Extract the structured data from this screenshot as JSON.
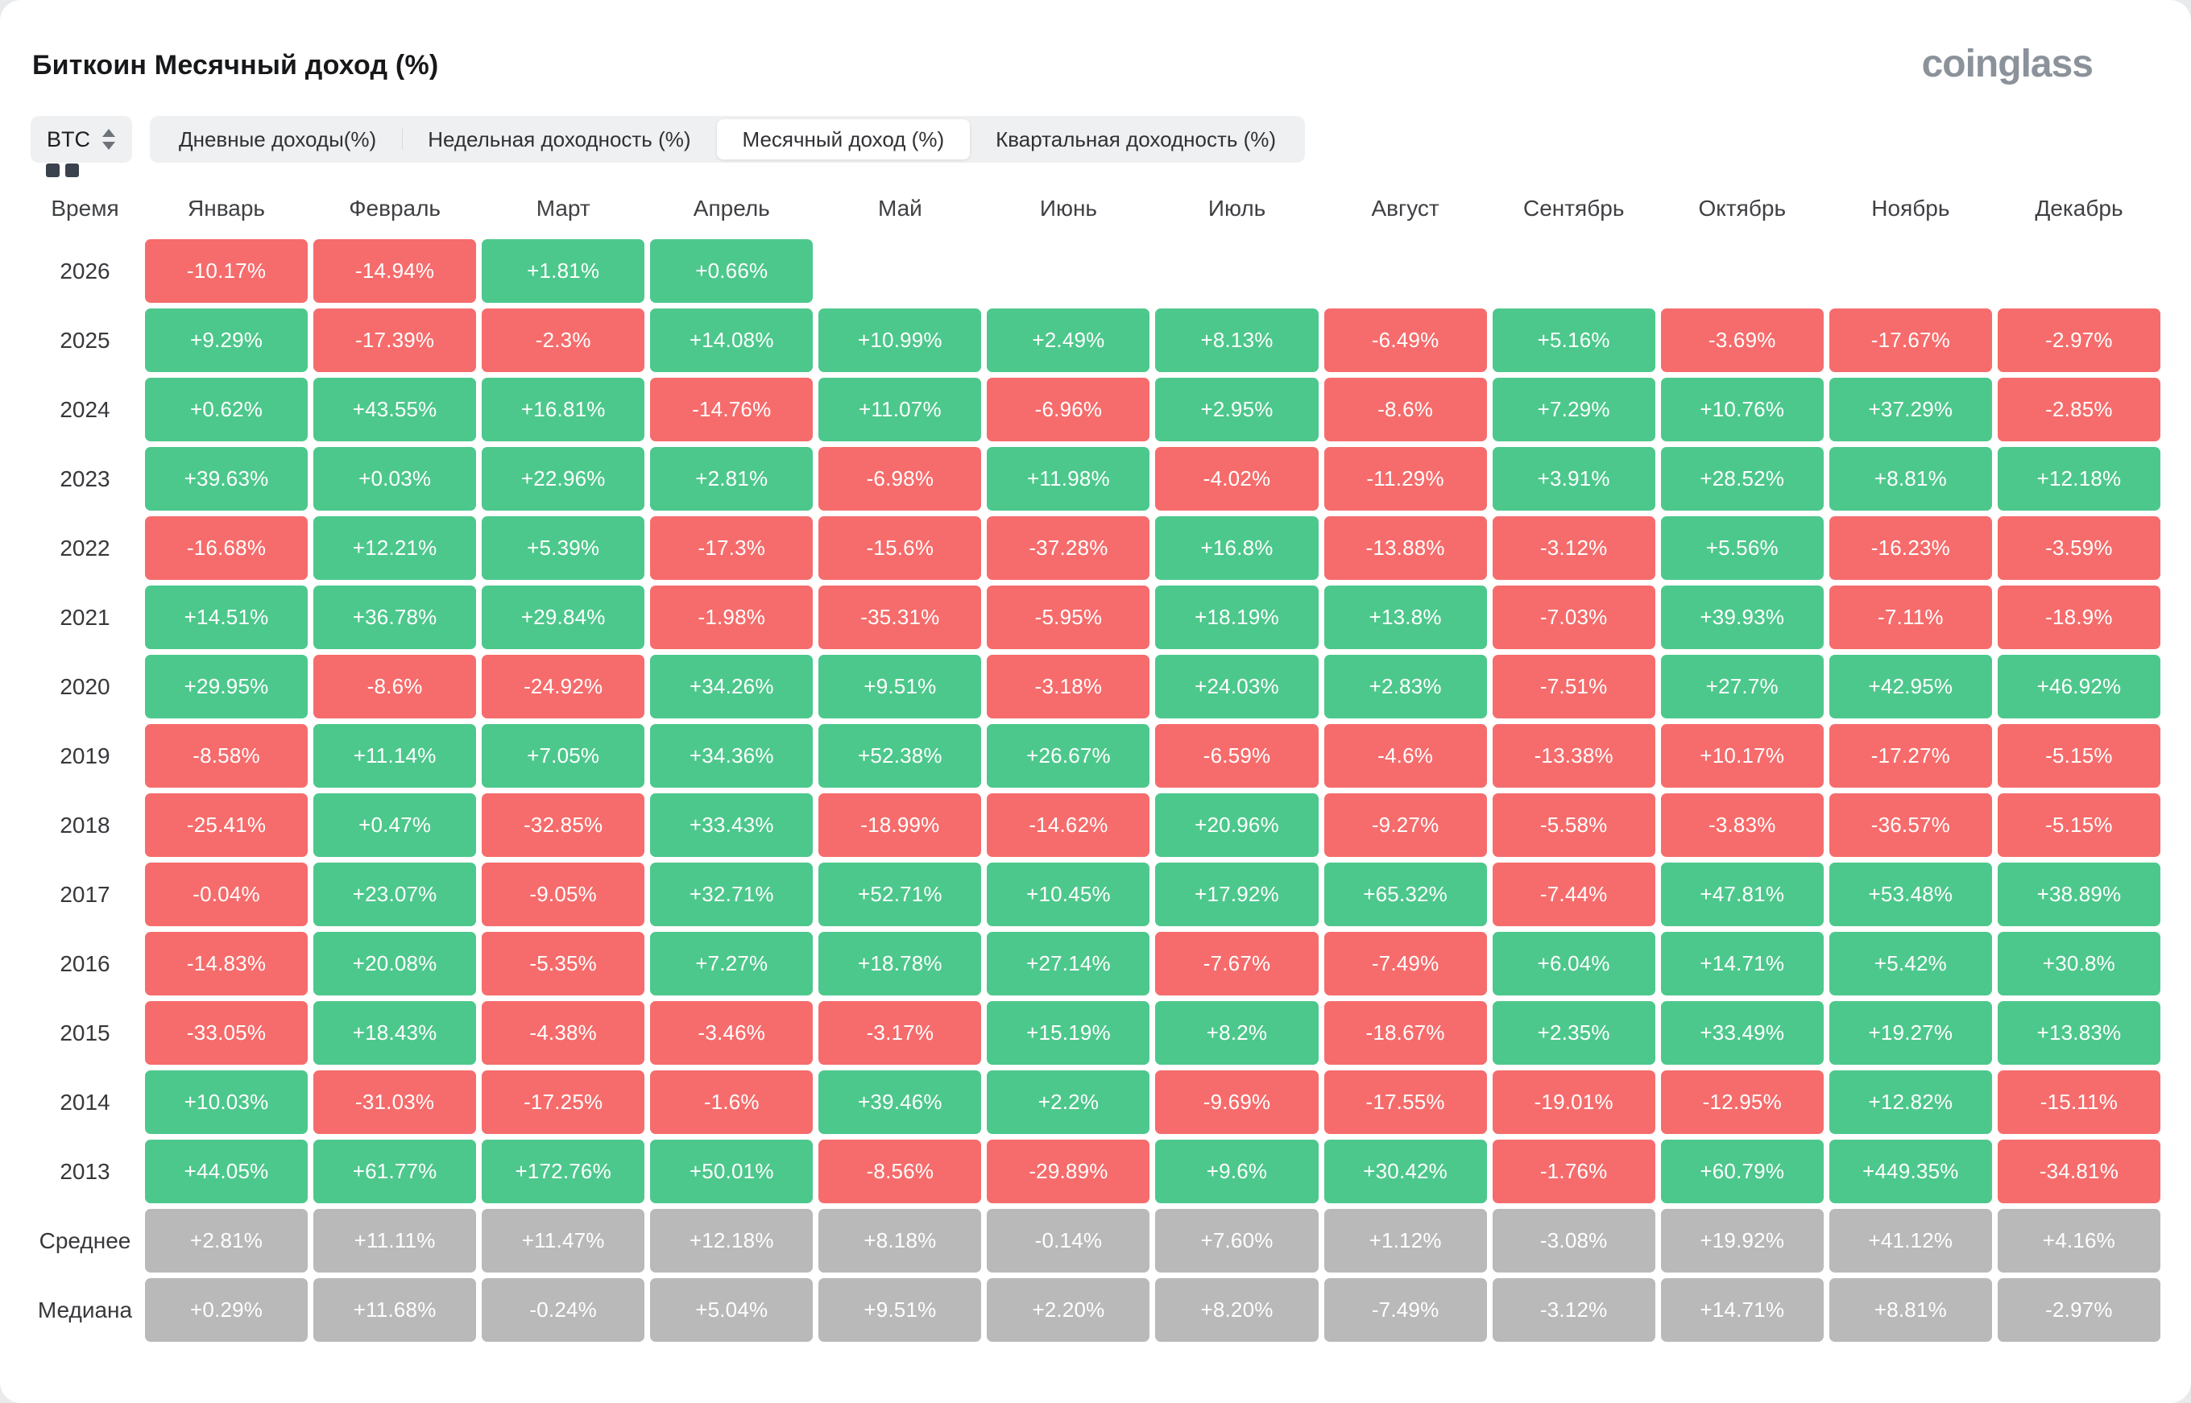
{
  "header": {
    "title": "Биткоин Месячный доход (%)",
    "logo_text": "coinglass"
  },
  "controls": {
    "coin_selector": {
      "label": "BTC"
    },
    "tabs": [
      {
        "label": "Дневные доходы(%)",
        "active": false
      },
      {
        "label": "Недельная доходность (%)",
        "active": false
      },
      {
        "label": "Месячный доход (%)",
        "active": true
      },
      {
        "label": "Квартальная доходность (%)",
        "active": false
      }
    ]
  },
  "colors": {
    "positive": "#4dc88c",
    "negative": "#f66c6c",
    "summary": "#b9b9b9"
  },
  "table": {
    "time_header": "Время",
    "month_headers": [
      "Январь",
      "Февраль",
      "Март",
      "Апрель",
      "Май",
      "Июнь",
      "Июль",
      "Август",
      "Сентябрь",
      "Октябрь",
      "Ноябрь",
      "Декабрь"
    ],
    "color_overrides": [
      {
        "row_label": "2019",
        "month_index": 9,
        "color": "negative"
      }
    ],
    "rows": [
      {
        "label": "2026",
        "type": "year",
        "values": [
          "-10.17%",
          "-14.94%",
          "+1.81%",
          "+0.66%",
          null,
          null,
          null,
          null,
          null,
          null,
          null,
          null
        ]
      },
      {
        "label": "2025",
        "type": "year",
        "values": [
          "+9.29%",
          "-17.39%",
          "-2.3%",
          "+14.08%",
          "+10.99%",
          "+2.49%",
          "+8.13%",
          "-6.49%",
          "+5.16%",
          "-3.69%",
          "-17.67%",
          "-2.97%"
        ]
      },
      {
        "label": "2024",
        "type": "year",
        "values": [
          "+0.62%",
          "+43.55%",
          "+16.81%",
          "-14.76%",
          "+11.07%",
          "-6.96%",
          "+2.95%",
          "-8.6%",
          "+7.29%",
          "+10.76%",
          "+37.29%",
          "-2.85%"
        ]
      },
      {
        "label": "2023",
        "type": "year",
        "values": [
          "+39.63%",
          "+0.03%",
          "+22.96%",
          "+2.81%",
          "-6.98%",
          "+11.98%",
          "-4.02%",
          "-11.29%",
          "+3.91%",
          "+28.52%",
          "+8.81%",
          "+12.18%"
        ]
      },
      {
        "label": "2022",
        "type": "year",
        "values": [
          "-16.68%",
          "+12.21%",
          "+5.39%",
          "-17.3%",
          "-15.6%",
          "-37.28%",
          "+16.8%",
          "-13.88%",
          "-3.12%",
          "+5.56%",
          "-16.23%",
          "-3.59%"
        ]
      },
      {
        "label": "2021",
        "type": "year",
        "values": [
          "+14.51%",
          "+36.78%",
          "+29.84%",
          "-1.98%",
          "-35.31%",
          "-5.95%",
          "+18.19%",
          "+13.8%",
          "-7.03%",
          "+39.93%",
          "-7.11%",
          "-18.9%"
        ]
      },
      {
        "label": "2020",
        "type": "year",
        "values": [
          "+29.95%",
          "-8.6%",
          "-24.92%",
          "+34.26%",
          "+9.51%",
          "-3.18%",
          "+24.03%",
          "+2.83%",
          "-7.51%",
          "+27.7%",
          "+42.95%",
          "+46.92%"
        ]
      },
      {
        "label": "2019",
        "type": "year",
        "values": [
          "-8.58%",
          "+11.14%",
          "+7.05%",
          "+34.36%",
          "+52.38%",
          "+26.67%",
          "-6.59%",
          "-4.6%",
          "-13.38%",
          "+10.17%",
          "-17.27%",
          "-5.15%"
        ]
      },
      {
        "label": "2018",
        "type": "year",
        "values": [
          "-25.41%",
          "+0.47%",
          "-32.85%",
          "+33.43%",
          "-18.99%",
          "-14.62%",
          "+20.96%",
          "-9.27%",
          "-5.58%",
          "-3.83%",
          "-36.57%",
          "-5.15%"
        ]
      },
      {
        "label": "2017",
        "type": "year",
        "values": [
          "-0.04%",
          "+23.07%",
          "-9.05%",
          "+32.71%",
          "+52.71%",
          "+10.45%",
          "+17.92%",
          "+65.32%",
          "-7.44%",
          "+47.81%",
          "+53.48%",
          "+38.89%"
        ]
      },
      {
        "label": "2016",
        "type": "year",
        "values": [
          "-14.83%",
          "+20.08%",
          "-5.35%",
          "+7.27%",
          "+18.78%",
          "+27.14%",
          "-7.67%",
          "-7.49%",
          "+6.04%",
          "+14.71%",
          "+5.42%",
          "+30.8%"
        ]
      },
      {
        "label": "2015",
        "type": "year",
        "values": [
          "-33.05%",
          "+18.43%",
          "-4.38%",
          "-3.46%",
          "-3.17%",
          "+15.19%",
          "+8.2%",
          "-18.67%",
          "+2.35%",
          "+33.49%",
          "+19.27%",
          "+13.83%"
        ]
      },
      {
        "label": "2014",
        "type": "year",
        "values": [
          "+10.03%",
          "-31.03%",
          "-17.25%",
          "-1.6%",
          "+39.46%",
          "+2.2%",
          "-9.69%",
          "-17.55%",
          "-19.01%",
          "-12.95%",
          "+12.82%",
          "-15.11%"
        ]
      },
      {
        "label": "2013",
        "type": "year",
        "values": [
          "+44.05%",
          "+61.77%",
          "+172.76%",
          "+50.01%",
          "-8.56%",
          "-29.89%",
          "+9.6%",
          "+30.42%",
          "-1.76%",
          "+60.79%",
          "+449.35%",
          "-34.81%"
        ]
      },
      {
        "label": "Среднее",
        "type": "summary",
        "values": [
          "+2.81%",
          "+11.11%",
          "+11.47%",
          "+12.18%",
          "+8.18%",
          "-0.14%",
          "+7.60%",
          "+1.12%",
          "-3.08%",
          "+19.92%",
          "+41.12%",
          "+4.16%"
        ]
      },
      {
        "label": "Медиана",
        "type": "summary",
        "values": [
          "+0.29%",
          "+11.68%",
          "-0.24%",
          "+5.04%",
          "+9.51%",
          "+2.20%",
          "+8.20%",
          "-7.49%",
          "-3.12%",
          "+14.71%",
          "+8.81%",
          "-2.97%"
        ]
      }
    ]
  }
}
